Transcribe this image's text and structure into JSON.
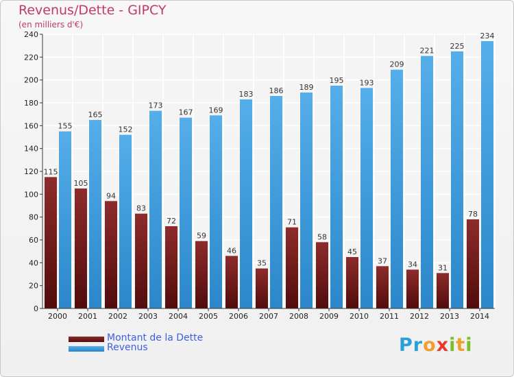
{
  "title": "Revenus/Dette - GIPCY",
  "subtitle": "(en milliers d'€)",
  "logo": "Proxiti",
  "colors": {
    "dette": "#7a1d1d",
    "revenus": "#3f9ee0",
    "title": "#c0396a",
    "legend_text": "#3b5ee6"
  },
  "legend": [
    {
      "label": "Montant de la Dette",
      "color": "#7a1d1d"
    },
    {
      "label": "Revenus",
      "color": "#3f9ee0"
    }
  ],
  "chart_data": {
    "type": "bar",
    "title": "Revenus/Dette - GIPCY",
    "ylabel": "(en milliers d'€)",
    "categories": [
      "2000",
      "2001",
      "2002",
      "2003",
      "2004",
      "2005",
      "2006",
      "2007",
      "2008",
      "2009",
      "2010",
      "2011",
      "2012",
      "2013",
      "2014"
    ],
    "series": [
      {
        "name": "Montant de la Dette",
        "values": [
          115,
          105,
          94,
          83,
          72,
          59,
          46,
          35,
          71,
          58,
          45,
          37,
          34,
          31,
          78
        ]
      },
      {
        "name": "Revenus",
        "values": [
          155,
          165,
          152,
          173,
          167,
          169,
          183,
          186,
          189,
          195,
          193,
          209,
          221,
          225,
          234
        ]
      }
    ],
    "ylim": [
      0,
      240
    ],
    "yticks": [
      0,
      20,
      40,
      60,
      80,
      100,
      120,
      140,
      160,
      180,
      200,
      220,
      240
    ],
    "grid": true,
    "legend_position": "bottom-left"
  }
}
